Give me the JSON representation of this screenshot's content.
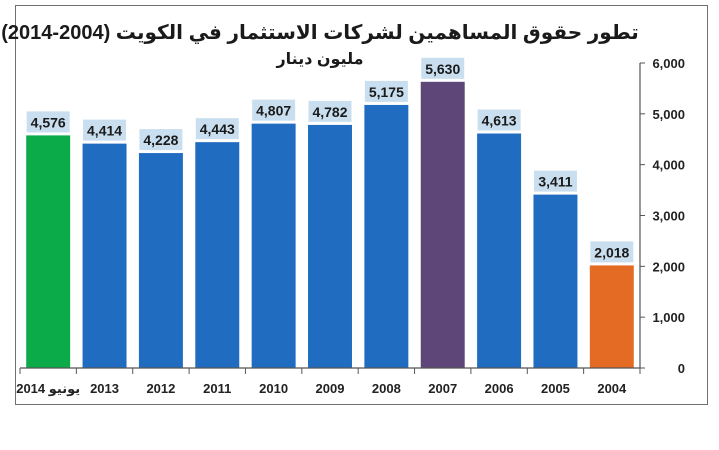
{
  "chart_data": {
    "type": "bar",
    "title": "تطور حقوق المساهمين لشركات الاستثمار في الكويت (2004-2014)",
    "subtitle": "مليون دينار",
    "categories": [
      "يونيو 2014",
      "2013",
      "2012",
      "2011",
      "2010",
      "2009",
      "2008",
      "2007",
      "2006",
      "2005",
      "2004"
    ],
    "values": [
      4576,
      4414,
      4228,
      4443,
      4807,
      4782,
      5175,
      5630,
      4613,
      3411,
      2018
    ],
    "data_labels": [
      "4,576",
      "4,414",
      "4,228",
      "4,443",
      "4,807",
      "4,782",
      "5,175",
      "5,630",
      "4,613",
      "3,411",
      "2,018"
    ],
    "bar_colors": [
      "#0bab4a",
      "#1f6cc1",
      "#1f6cc1",
      "#1f6cc1",
      "#1f6cc1",
      "#1f6cc1",
      "#1f6cc1",
      "#5f4679",
      "#1f6cc1",
      "#1f6cc1",
      "#e46b23"
    ],
    "label_bg": "#c9dff0",
    "ylim": [
      0,
      6000
    ],
    "yticks": [
      0,
      1000,
      2000,
      3000,
      4000,
      5000,
      6000
    ],
    "ytick_labels": [
      "0",
      "1,000",
      "2,000",
      "3,000",
      "4,000",
      "5,000",
      "6,000"
    ],
    "y_axis_side": "right",
    "grid": false,
    "legend": "none"
  }
}
